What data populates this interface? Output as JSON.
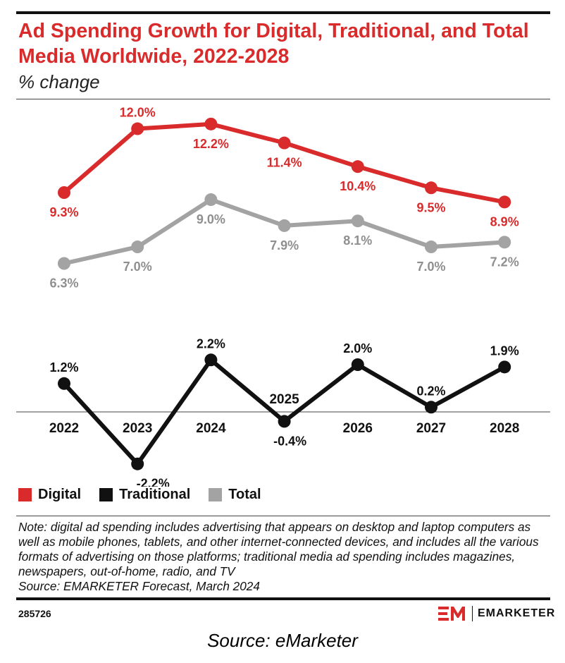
{
  "title": "Ad Spending Growth for Digital, Traditional, and Total Media Worldwide, 2022-2028",
  "subtitle": "% change",
  "colors": {
    "digital": "#d92b2b",
    "traditional": "#111111",
    "total": "#a3a3a3",
    "title": "#d92b2b"
  },
  "chart_data": {
    "type": "line",
    "title": "Ad Spending Growth for Digital, Traditional, and Total Media Worldwide, 2022-2028",
    "subtitle": "% change",
    "x": [
      "2022",
      "2023",
      "2024",
      "2025",
      "2026",
      "2027",
      "2028"
    ],
    "unit": "%",
    "grid": false,
    "legend_position": "bottom-left",
    "series": [
      {
        "name": "Digital",
        "values": [
          9.3,
          12.0,
          12.2,
          11.4,
          10.4,
          9.5,
          8.9
        ],
        "labels": [
          "9.3%",
          "12.0%",
          "12.2%",
          "11.4%",
          "10.4%",
          "9.5%",
          "8.9%"
        ]
      },
      {
        "name": "Traditional",
        "values": [
          1.2,
          -2.2,
          2.2,
          -0.4,
          2.0,
          0.2,
          1.9
        ],
        "labels": [
          "1.2%",
          "-2.2%",
          "2.2%",
          "-0.4%",
          "2.0%",
          "0.2%",
          "1.9%"
        ]
      },
      {
        "name": "Total",
        "values": [
          6.3,
          7.0,
          9.0,
          7.9,
          8.1,
          7.0,
          7.2
        ],
        "labels": [
          "6.3%",
          "7.0%",
          "9.0%",
          "7.9%",
          "8.1%",
          "7.0%",
          "7.2%"
        ]
      }
    ]
  },
  "legend": [
    {
      "label": "Digital",
      "color": "#d92b2b"
    },
    {
      "label": "Traditional",
      "color": "#111111"
    },
    {
      "label": "Total",
      "color": "#a3a3a3"
    }
  ],
  "note": "Note: digital ad spending includes advertising that appears on desktop and laptop computers as well as mobile phones, tablets, and other internet-connected devices, and includes all the various formats of advertising on those platforms; traditional media ad spending includes magazines, newspapers, out-of-home, radio, and TV",
  "source": "Source: EMARKETER Forecast, March 2024",
  "chart_id": "285726",
  "brand": {
    "name": "EMARKETER",
    "mark": "EM"
  },
  "caption": "Source: eMarketer"
}
